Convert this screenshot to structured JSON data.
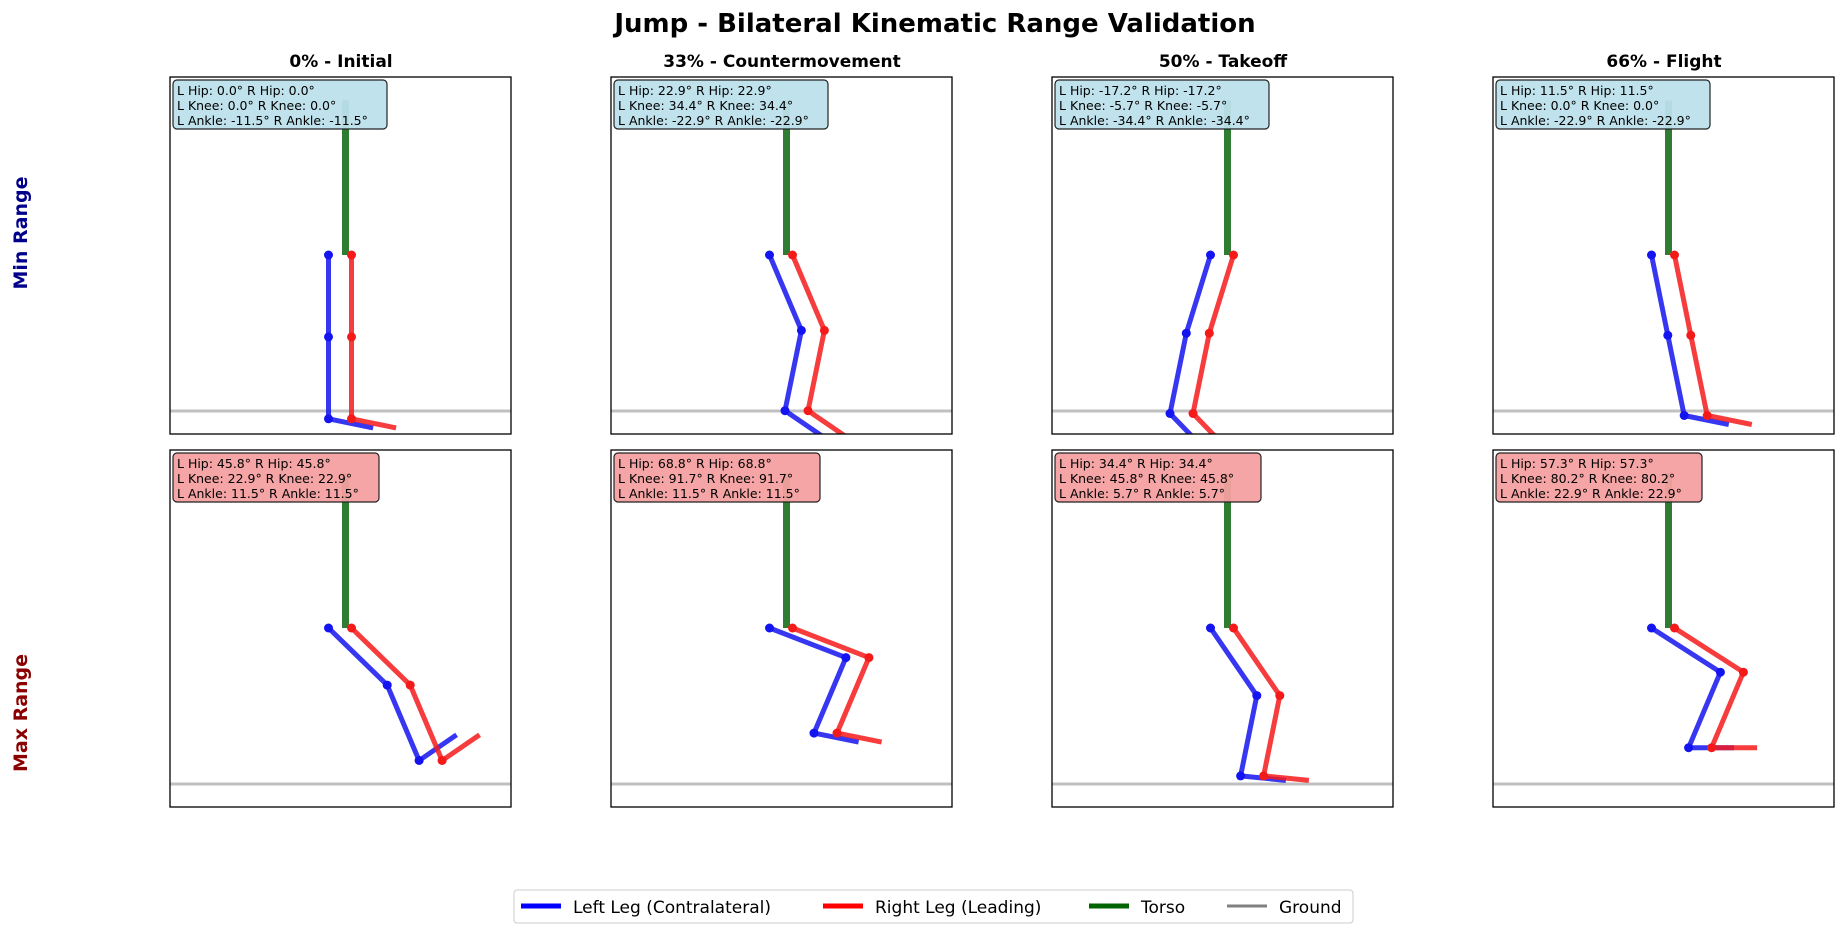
{
  "chart_data": {
    "type": "line",
    "title": "Jump - Bilateral Kinematic Range Validation",
    "row_labels": [
      "Min Range",
      "Max Range"
    ],
    "columns": [
      "0% - Initial",
      "33% - Countermovement",
      "50% - Takeoff",
      "66% - Flight"
    ],
    "segment_lengths": {
      "torso": 1.0,
      "thigh": 0.45,
      "shank": 0.45,
      "foot": 0.25
    },
    "panels": [
      {
        "row": "min",
        "column": "0% - Initial",
        "angles": {
          "left": {
            "hip": 0.0,
            "knee": 0.0,
            "ankle": -11.5
          },
          "right": {
            "hip": 0.0,
            "knee": 0.0,
            "ankle": -11.5
          }
        },
        "label_lines": [
          "L Hip: 0.0°  R Hip: 0.0°",
          "L Knee: 0.0°  R Knee: 0.0°",
          "L Ankle: -11.5°  R Ankle: -11.5°"
        ]
      },
      {
        "row": "min",
        "column": "33% - Countermovement",
        "angles": {
          "left": {
            "hip": 22.9,
            "knee": 34.4,
            "ankle": -22.9
          },
          "right": {
            "hip": 22.9,
            "knee": 34.4,
            "ankle": -22.9
          }
        },
        "label_lines": [
          "L Hip: 22.9°  R Hip: 22.9°",
          "L Knee: 34.4°  R Knee: 34.4°",
          "L Ankle: -22.9°  R Ankle: -22.9°"
        ]
      },
      {
        "row": "min",
        "column": "50% - Takeoff",
        "angles": {
          "left": {
            "hip": -17.2,
            "knee": -5.7,
            "ankle": -34.4
          },
          "right": {
            "hip": -17.2,
            "knee": -5.7,
            "ankle": -34.4
          }
        },
        "label_lines": [
          "L Hip: -17.2°  R Hip: -17.2°",
          "L Knee: -5.7°  R Knee: -5.7°",
          "L Ankle: -34.4°  R Ankle: -34.4°"
        ]
      },
      {
        "row": "min",
        "column": "66% - Flight",
        "angles": {
          "left": {
            "hip": 11.5,
            "knee": 0.0,
            "ankle": -22.9
          },
          "right": {
            "hip": 11.5,
            "knee": 0.0,
            "ankle": -22.9
          }
        },
        "label_lines": [
          "L Hip: 11.5°  R Hip: 11.5°",
          "L Knee: 0.0°  R Knee: 0.0°",
          "L Ankle: -22.9°  R Ankle: -22.9°"
        ]
      },
      {
        "row": "max",
        "column": "0% - Initial",
        "angles": {
          "left": {
            "hip": 45.8,
            "knee": 22.9,
            "ankle": 11.5
          },
          "right": {
            "hip": 45.8,
            "knee": 22.9,
            "ankle": 11.5
          }
        },
        "label_lines": [
          "L Hip: 45.8°  R Hip: 45.8°",
          "L Knee: 22.9°  R Knee: 22.9°",
          "L Ankle: 11.5°  R Ankle: 11.5°"
        ]
      },
      {
        "row": "max",
        "column": "33% - Countermovement",
        "angles": {
          "left": {
            "hip": 68.8,
            "knee": 91.7,
            "ankle": 11.5
          },
          "right": {
            "hip": 68.8,
            "knee": 91.7,
            "ankle": 11.5
          }
        },
        "label_lines": [
          "L Hip: 68.8°  R Hip: 68.8°",
          "L Knee: 91.7°  R Knee: 91.7°",
          "L Ankle: 11.5°  R Ankle: 11.5°"
        ]
      },
      {
        "row": "max",
        "column": "50% - Takeoff",
        "angles": {
          "left": {
            "hip": 34.4,
            "knee": 45.8,
            "ankle": 5.7
          },
          "right": {
            "hip": 34.4,
            "knee": 45.8,
            "ankle": 5.7
          }
        },
        "label_lines": [
          "L Hip: 34.4°  R Hip: 34.4°",
          "L Knee: 45.8°  R Knee: 45.8°",
          "L Ankle: 5.7°  R Ankle: 5.7°"
        ]
      },
      {
        "row": "max",
        "column": "66% - Flight",
        "angles": {
          "left": {
            "hip": 57.3,
            "knee": 80.2,
            "ankle": 22.9
          },
          "right": {
            "hip": 57.3,
            "knee": 80.2,
            "ankle": 22.9
          }
        },
        "label_lines": [
          "L Hip: 57.3°  R Hip: 57.3°",
          "L Knee: 80.2°  R Knee: 80.2°",
          "L Ankle: 22.9°  R Ankle: 22.9°"
        ]
      }
    ],
    "legend": {
      "placement": "bottom-center",
      "items": [
        {
          "label": "Left Leg (Contralateral)",
          "color": "#0000ff"
        },
        {
          "label": "Right Leg (Leading)",
          "color": "#ff0000"
        },
        {
          "label": "Torso",
          "color": "#006400"
        },
        {
          "label": "Ground",
          "color": "#808080"
        }
      ]
    },
    "colors": {
      "left_leg": "#1414f0",
      "right_leg": "#f51a1a",
      "torso": "#2e7d32",
      "ground": "#c0c0c0",
      "min_label_box": "#bde0ec",
      "max_label_box": "#f4a0a0",
      "min_row_label": "#00008b",
      "max_row_label": "#8b0000"
    },
    "grid": false
  }
}
